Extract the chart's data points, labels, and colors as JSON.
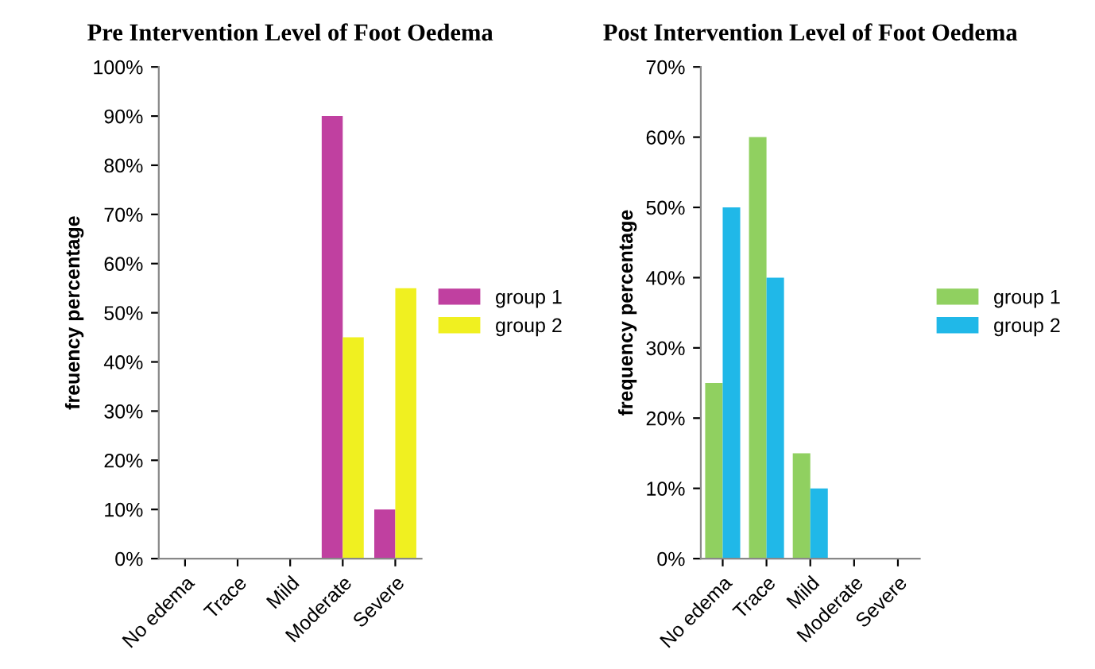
{
  "chart_data": [
    {
      "type": "bar",
      "title": "Pre Intervention Level of Foot Oedema",
      "ylabel": "freuency percentage",
      "categories": [
        "No edema",
        "Trace",
        "Mild",
        "Moderate",
        "Severe"
      ],
      "series": [
        {
          "name": "group 1",
          "color": "#c040a0",
          "values": [
            0,
            0,
            0,
            90,
            10
          ]
        },
        {
          "name": "group 2",
          "color": "#f0f020",
          "values": [
            0,
            0,
            0,
            45,
            55
          ]
        }
      ],
      "ylim": [
        0,
        100
      ],
      "yticks": [
        {
          "value": 0,
          "label": "0%"
        },
        {
          "value": 10,
          "label": "10%"
        },
        {
          "value": 20,
          "label": "20%"
        },
        {
          "value": 30,
          "label": "30%"
        },
        {
          "value": 40,
          "label": "40%"
        },
        {
          "value": 50,
          "label": "50%"
        },
        {
          "value": 60,
          "label": "60%"
        },
        {
          "value": 70,
          "label": "70%"
        },
        {
          "value": 80,
          "label": "80%"
        },
        {
          "value": 90,
          "label": "90%"
        },
        {
          "value": 100,
          "label": "100%"
        }
      ],
      "grid": false,
      "legend": "right"
    },
    {
      "type": "bar",
      "title": "Post Intervention Level of Foot Oedema",
      "ylabel": "frequency percentage",
      "categories": [
        "No edema",
        "Trace",
        "Mild",
        "Moderate",
        "Severe"
      ],
      "series": [
        {
          "name": "group 1",
          "color": "#90d060",
          "values": [
            25,
            60,
            15,
            0,
            0
          ]
        },
        {
          "name": "group 2",
          "color": "#20b8e8",
          "values": [
            50,
            40,
            10,
            0,
            0
          ]
        }
      ],
      "ylim": [
        0,
        70
      ],
      "yticks": [
        {
          "value": 0,
          "label": "0%"
        },
        {
          "value": 10,
          "label": "10%"
        },
        {
          "value": 20,
          "label": "20%"
        },
        {
          "value": 30,
          "label": "30%"
        },
        {
          "value": 40,
          "label": "40%"
        },
        {
          "value": 50,
          "label": "50%"
        },
        {
          "value": 60,
          "label": "60%"
        },
        {
          "value": 70,
          "label": "70%"
        }
      ],
      "grid": false,
      "legend": "right"
    }
  ]
}
